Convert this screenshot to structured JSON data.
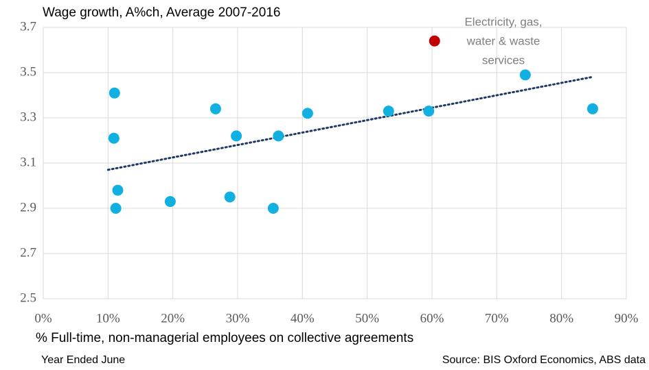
{
  "chart_data": {
    "type": "scatter",
    "title": "Wage growth, A%ch, Average 2007-2016",
    "x_label": "% Full-time, non-managerial employees on collective agreements",
    "footnote": "Year Ended June",
    "source": "Source: BIS Oxford Economics, ABS data",
    "series": [
      {
        "color": "#12b0e0",
        "x": [
          11.0,
          10.9,
          11.5,
          11.2,
          19.6,
          26.6,
          28.8,
          29.8,
          35.5,
          36.3,
          40.8,
          53.3,
          59.5,
          74.4,
          84.8
        ],
        "values": [
          3.41,
          3.21,
          2.98,
          2.9,
          2.93,
          3.34,
          2.95,
          3.22,
          2.9,
          3.22,
          3.32,
          3.33,
          3.33,
          3.49,
          3.34
        ]
      },
      {
        "color": "#c00000",
        "x": [
          60.4
        ],
        "values": [
          3.64
        ]
      }
    ],
    "trendline": {
      "color": "#1f3864",
      "x": [
        10.0,
        84.6
      ],
      "values": [
        3.07,
        3.48
      ]
    },
    "annotation": [
      "Electricity, gas,",
      "water & waste",
      "services"
    ],
    "xlim": [
      0,
      90
    ],
    "xticks": [
      {
        "value": 0,
        "label": "0%"
      },
      {
        "value": 10,
        "label": "10%"
      },
      {
        "value": 20,
        "label": "20%"
      },
      {
        "value": 30,
        "label": "30%"
      },
      {
        "value": 40,
        "label": "40%"
      },
      {
        "value": 50,
        "label": "50%"
      },
      {
        "value": 60,
        "label": "60%"
      },
      {
        "value": 70,
        "label": "70%"
      },
      {
        "value": 80,
        "label": "80%"
      },
      {
        "value": 90,
        "label": "90%"
      }
    ],
    "ylim": [
      2.5,
      3.7
    ],
    "yticks": [
      2.5,
      2.7,
      2.9,
      3.1,
      3.3,
      3.5,
      3.7
    ],
    "grid": true
  }
}
